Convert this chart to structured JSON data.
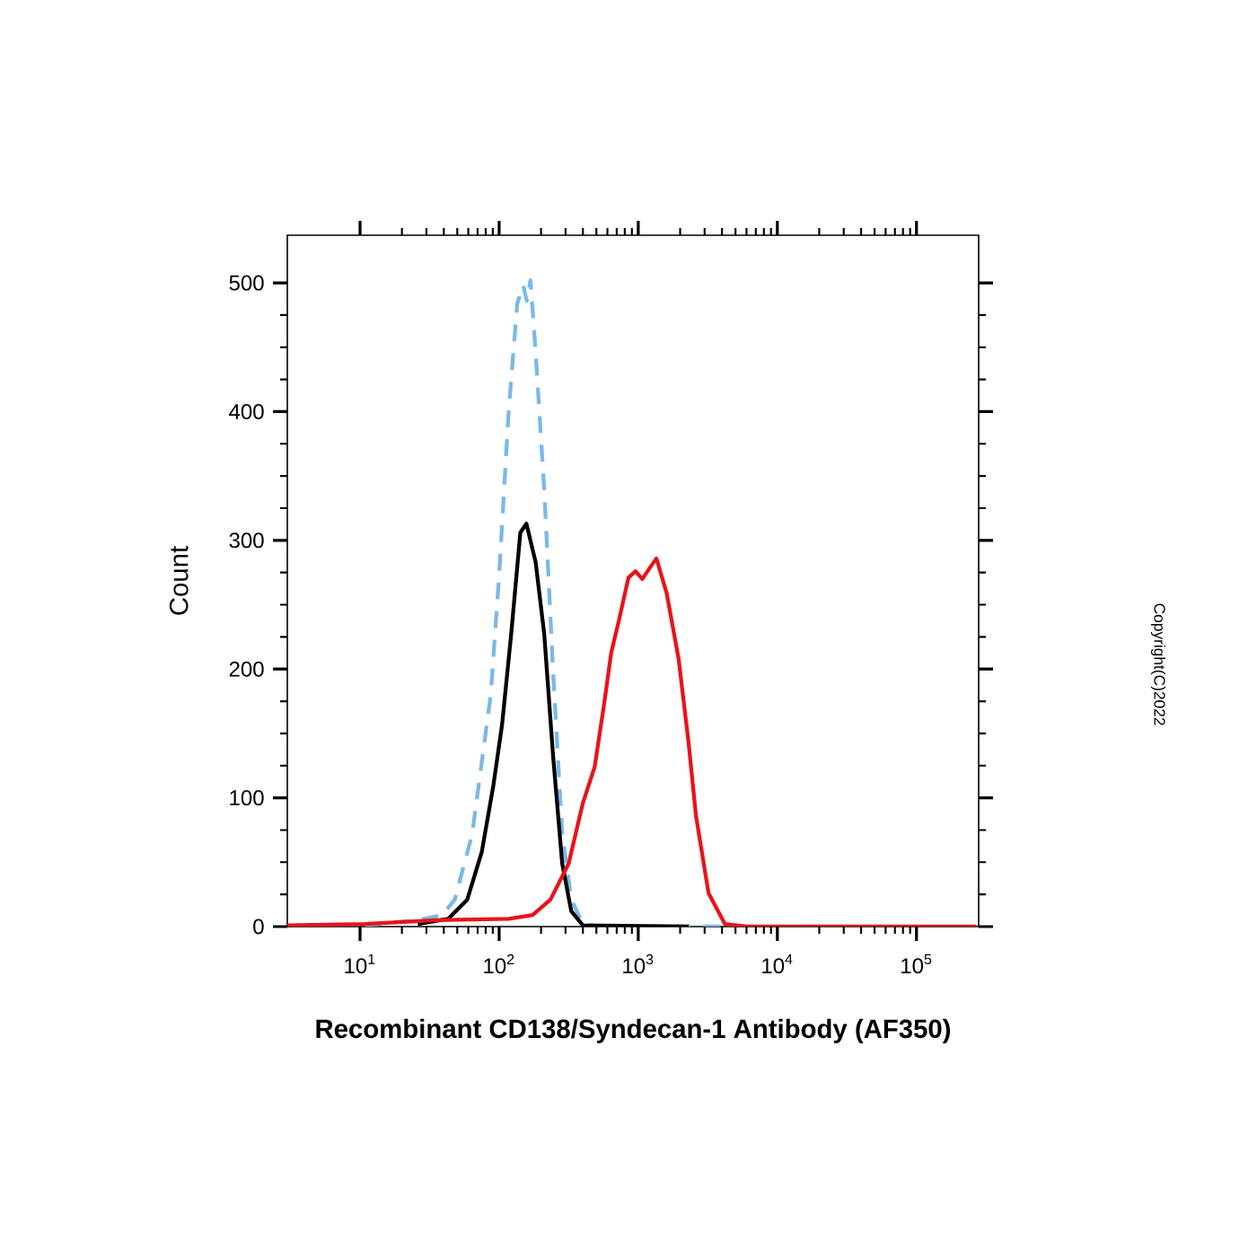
{
  "chart_data": {
    "type": "line",
    "xlabel": "Recombinant CD138/Syndecan-1 Antibody (AF350)",
    "ylabel": "Count",
    "annotations": [
      "Copyright(C)2022"
    ],
    "log": "x",
    "marker": "none",
    "xlim": [
      3,
      280000
    ],
    "ylim": [
      0,
      537
    ],
    "xticks": [
      {
        "value": 10,
        "label": "10$^{1}$"
      },
      {
        "value": 100,
        "label": "10$^{2}$"
      },
      {
        "value": 1000,
        "label": "10$^{3}$"
      },
      {
        "value": 10000,
        "label": "10$^{4}$"
      },
      {
        "value": 100000,
        "label": "10$^{5}$"
      }
    ],
    "yticks": [
      0,
      100,
      200,
      300,
      400,
      500
    ],
    "series": [
      {
        "color": "#7ab8e8",
        "line_style": "dashed",
        "x": [
          10.8,
          26,
          39,
          48,
          64,
          87,
          100,
          117,
          135,
          149,
          158,
          168,
          183,
          211,
          244,
          284,
          330,
          400,
          565,
          4200
        ],
        "values": [
          1,
          5,
          9,
          21,
          72,
          180,
          273,
          400,
          484,
          498,
          486,
          502,
          446,
          339,
          199,
          72,
          21,
          2,
          0,
          0
        ]
      },
      {
        "color": "#000000",
        "line_style": "solid",
        "x": [
          26,
          43,
          59,
          75,
          91,
          105,
          122,
          142,
          157,
          183,
          211,
          244,
          284,
          330,
          400,
          2300
        ],
        "values": [
          2,
          6,
          21,
          58,
          110,
          157,
          227,
          306,
          313,
          283,
          227,
          133,
          49,
          12,
          1,
          0
        ]
      },
      {
        "color": "#e8141b",
        "line_style": "solid",
        "x": [
          3,
          10.8,
          35,
          117,
          174,
          234,
          316,
          400,
          486,
          565,
          640,
          720,
          850,
          955,
          1070,
          1200,
          1350,
          1600,
          1950,
          2300,
          2600,
          3200,
          4200,
          6200,
          270000
        ],
        "values": [
          1,
          2,
          5,
          6,
          9,
          21,
          49,
          96,
          124,
          171,
          213,
          236,
          271,
          276,
          270,
          278,
          286,
          259,
          208,
          143,
          86,
          26,
          2,
          0,
          0
        ]
      }
    ]
  }
}
